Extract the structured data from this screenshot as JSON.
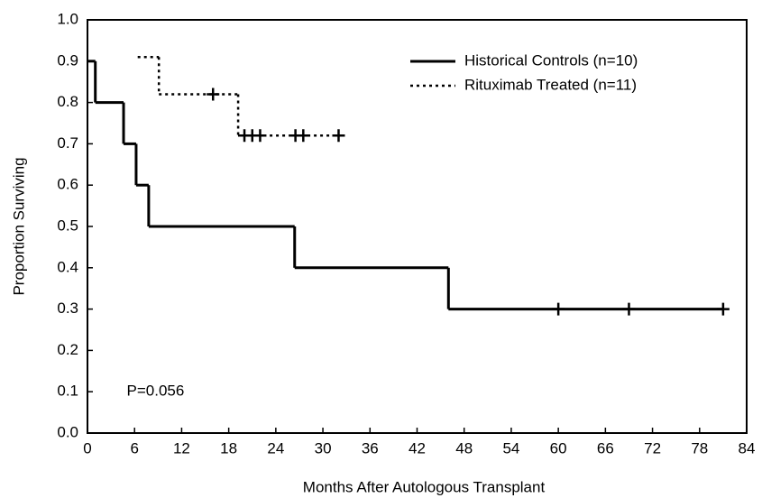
{
  "chart_data": {
    "type": "step",
    "xlabel": "Months After Autologous Transplant",
    "ylabel": "Proportion Surviving",
    "annotation": "P=0.056",
    "annotation_pos": [
      5,
      0.1
    ],
    "legend": "upper right",
    "xlim": [
      0,
      84
    ],
    "ylim": [
      0,
      1
    ],
    "xticks": [
      0,
      6,
      12,
      18,
      24,
      30,
      36,
      42,
      48,
      54,
      60,
      66,
      72,
      78,
      84
    ],
    "yticks": [
      {
        "value": 0,
        "label": "0.0"
      },
      0.1,
      0.2,
      0.3,
      0.4,
      0.5,
      0.6,
      0.7,
      0.8,
      0.9,
      {
        "value": 1,
        "label": "1.0"
      }
    ],
    "series": [
      {
        "name": "Historical Controls (n=10)",
        "color": "#000000",
        "style": "solid",
        "x": [
          0,
          1,
          4.6,
          6.2,
          7.8,
          26.4,
          46,
          81
        ],
        "values": [
          0.9,
          0.8,
          0.7,
          0.6,
          0.5,
          0.4,
          0.3,
          0.3
        ],
        "censor_x": [
          60,
          69,
          81
        ],
        "censor_values": [
          0.3,
          0.3,
          0.3
        ]
      },
      {
        "name": "Rituximab Treated (n=11)",
        "color": "#000000",
        "style": "dotted",
        "x": [
          6.4,
          9.1,
          19.2,
          32
        ],
        "values": [
          0.91,
          0.82,
          0.72,
          0.72
        ],
        "censor_x": [
          16,
          20,
          21,
          22,
          26.5,
          27.5,
          32
        ],
        "censor_values": [
          0.82,
          0.72,
          0.72,
          0.72,
          0.72,
          0.72,
          0.72
        ]
      }
    ]
  }
}
